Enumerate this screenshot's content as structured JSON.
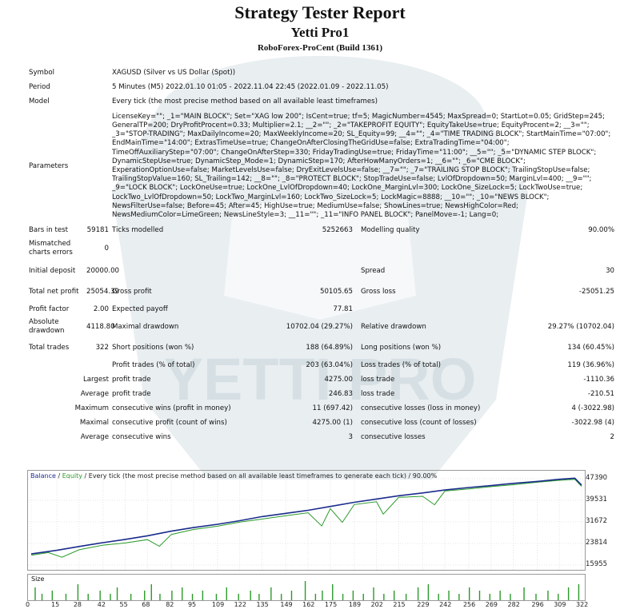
{
  "report": {
    "title": "Strategy Tester Report",
    "subtitle": "Yetti Pro1",
    "broker": "RoboForex-ProCent (Build 1361)"
  },
  "watermark": {
    "text": "YETTI PRO",
    "color": "#dfe6ea"
  },
  "rows": {
    "symbol_label": "Symbol",
    "symbol_value": "XAGUSD (Silver vs US Dollar (Spot))",
    "period_label": "Period",
    "period_value": "5 Minutes (M5) 2022.01.10 01:05 - 2022.11.04 22:45 (2022.01.09 - 2022.11.05)",
    "model_label": "Model",
    "model_value": "Every tick (the most precise method based on all available least timeframes)",
    "params_label": "Parameters",
    "params_value": "LicenseKey=\"\"; _1=\"MAIN BLOCK\"; Set=\"XAG low 200\"; IsCent=true; tf=5; MagicNumber=4545; MaxSpread=0; StartLot=0.05; GridStep=245; GeneralTP=200; DryProfitProcent=0.33; Multiplier=2.1; __2=\"\"; _2=\"TAKEPROFIT EQUITY\"; EquityTakeUse=true; EquityProcent=2; __3=\"\"; _3=\"STOP-TRADING\"; MaxDailyIncome=20; MaxWeeklyIncome=20; SL_Equity=99; __4=\"\"; _4=\"TIME TRADING BLOCK\"; StartMainTime=\"07:00\"; EndMainTime=\"14:00\"; ExtrasTimeUse=true; ChangeOnAfterClosingTheGridUse=false; ExtraTradingTime=\"04:00\"; TimeOffAuxiliaryStep=\"07:00\"; ChangeOnAfterStep=330; FridayTradingUse=true; FridayTime=\"11:00\"; __5=\"\"; _5=\"DYNAMIC STEP BLOCK\"; DynamicStepUse=true; DynamicStep_Mode=1; DynamicStep=170; AfterHowManyOrders=1; __6=\"\"; _6=\"CME BLOCK\"; ExperationOptionUse=false; MarketLevelsUse=false; DryExitLevelsUse=false; __7=\"\"; _7=\"TRAILING STOP BLOCK\"; TrailingStopUse=false; TrailingStopValue=160; SL_Trailing=142; __8=\"\"; _8=\"PROTECT BLOCK\"; StopTradeUse=false; LvlOfDropdown=50; MarginLvl=400; __9=\"\"; _9=\"LOCK BLOCK\"; LockOneUse=true; LockOne_LvlOfDropdown=40; LockOne_MarginLvl=300; LockOne_SizeLock=5; LockTwoUse=true; LockTwo_LvlOfDropdown=50; LockTwo_MarginLvl=160; LockTwo_SizeLock=5; LockMagic=8888; __10=\"\"; _10=\"NEWS BLOCK\"; NewsFilterUse=false; Before=45; After=45; HighUse=true; MediumUse=false; ShowLines=true; NewsHighColor=Red; NewsMediumColor=LimeGreen; NewsLineStyle=3; __11=\"\"; _11=\"INFO PANEL BLOCK\"; PanelMove=-1; Lang=0;",
    "bars_label": "Bars in test",
    "bars_value": "59181",
    "ticks_label": "Ticks modelled",
    "ticks_value": "5252663",
    "mq_label": "Modelling quality",
    "mq_value": "90.00%",
    "mce_label": "Mismatched charts errors",
    "mce_value": "0",
    "deposit_label": "Initial deposit",
    "deposit_value": "20000.00",
    "spread_label": "Spread",
    "spread_value": "30",
    "tnp_label": "Total net profit",
    "tnp_value": "25054.39",
    "gp_label": "Gross profit",
    "gp_value": "50105.65",
    "gl_label": "Gross loss",
    "gl_value": "-25051.25",
    "pf_label": "Profit factor",
    "pf_value": "2.00",
    "ep_label": "Expected payoff",
    "ep_value": "77.81",
    "add_label": "Absolute drawdown",
    "add_value": "4118.80",
    "mdd_label": "Maximal drawdown",
    "mdd_value": "10702.04 (29.27%)",
    "rdd_label": "Relative drawdown",
    "rdd_value": "29.27% (10702.04)",
    "tt_label": "Total trades",
    "tt_value": "322",
    "sp_label": "Short positions (won %)",
    "sp_value": "188 (64.89%)",
    "lp_label": "Long positions (won %)",
    "lp_value": "134 (60.45%)",
    "pt_label": "Profit trades (% of total)",
    "pt_value": "203 (63.04%)",
    "lt_label": "Loss trades (% of total)",
    "lt_value": "119 (36.96%)",
    "largest_label": "Largest",
    "lpt_label": "profit trade",
    "lpt_value": "4275.00",
    "llt_label": "loss trade",
    "llt_value": "-1110.36",
    "average_label": "Average",
    "apt_label": "profit trade",
    "apt_value": "246.83",
    "alt_label": "loss trade",
    "alt_value": "-210.51",
    "maximum_label": "Maximum",
    "mcw_label": "consecutive wins (profit in money)",
    "mcw_value": "11 (697.42)",
    "mcl_label": "consecutive losses (loss in money)",
    "mcl_value": "4 (-3022.98)",
    "maximal_label": "Maximal",
    "mcp_label": "consecutive profit (count of wins)",
    "mcp_value": "4275.00 (1)",
    "mclc_label": "consecutive loss (count of losses)",
    "mclc_value": "-3022.98 (4)",
    "average2_label": "Average",
    "acw_label": "consecutive wins",
    "acw_value": "3",
    "acl_label": "consecutive losses",
    "acl_value": "2"
  },
  "chart": {
    "header_balance": "Balance",
    "header_sep": " / ",
    "header_equity": "Equity",
    "header_rest": " / Every tick (the most precise method based on all available least timeframes to generate each tick) / 90.00%",
    "y_ticks": [
      "47390",
      "39531",
      "31672",
      "23814",
      "15955"
    ],
    "x_ticks": [
      "0",
      "15",
      "28",
      "42",
      "55",
      "68",
      "82",
      "95",
      "109",
      "122",
      "135",
      "149",
      "162",
      "175",
      "189",
      "202",
      "215",
      "229",
      "242",
      "256",
      "269",
      "282",
      "296",
      "309",
      "322"
    ],
    "size_label": "Size",
    "balance_color": "#1a2c8c",
    "equity_color": "#2a9a2a"
  },
  "chart_data": {
    "type": "line",
    "title": "Balance / Equity / Every tick (the most precise method based on all available least timeframes to generate each tick) / 90.00%",
    "xlim": [
      0,
      322
    ],
    "ylim": [
      15955,
      47390
    ],
    "series": [
      {
        "name": "Balance",
        "x": [
          0,
          15,
          28,
          42,
          55,
          68,
          82,
          95,
          109,
          122,
          135,
          149,
          162,
          175,
          189,
          202,
          215,
          229,
          242,
          256,
          269,
          282,
          296,
          309,
          318,
          322
        ],
        "y": [
          20000,
          21300,
          22700,
          24100,
          25300,
          26600,
          28300,
          29600,
          30800,
          32100,
          33600,
          34800,
          35900,
          37300,
          38800,
          40000,
          41200,
          42200,
          43300,
          44200,
          44900,
          45700,
          46400,
          47200,
          47600,
          45050
        ]
      },
      {
        "name": "Equity",
        "x": [
          0,
          10,
          18,
          28,
          42,
          55,
          68,
          75,
          82,
          95,
          109,
          122,
          135,
          149,
          162,
          170,
          175,
          182,
          189,
          202,
          206,
          215,
          229,
          236,
          242,
          256,
          269,
          282,
          296,
          309,
          318,
          322
        ],
        "y": [
          19500,
          20500,
          18800,
          21500,
          23200,
          24000,
          25200,
          22800,
          27100,
          28900,
          30100,
          31600,
          32700,
          33900,
          35000,
          30200,
          36500,
          31500,
          38000,
          39000,
          34500,
          40600,
          41000,
          37900,
          42900,
          43700,
          44500,
          45200,
          46100,
          46800,
          47200,
          44600
        ]
      }
    ],
    "size_bars": {
      "x": [
        2,
        6,
        12,
        20,
        27,
        33,
        40,
        46,
        50,
        58,
        66,
        70,
        75,
        82,
        88,
        94,
        100,
        108,
        114,
        121,
        128,
        133,
        140,
        146,
        152,
        160,
        166,
        170,
        176,
        182,
        188,
        194,
        200,
        206,
        212,
        219,
        226,
        232,
        238,
        244,
        250,
        256,
        262,
        268,
        274,
        280,
        288,
        295,
        302,
        308,
        314,
        320
      ],
      "y": [
        3,
        1,
        2,
        1,
        4,
        1,
        2,
        1,
        3,
        1,
        2,
        4,
        1,
        2,
        3,
        1,
        2,
        1,
        3,
        1,
        2,
        1,
        3,
        1,
        2,
        5,
        1,
        2,
        4,
        1,
        2,
        1,
        3,
        1,
        2,
        1,
        3,
        4,
        1,
        2,
        1,
        3,
        2,
        1,
        2,
        1,
        3,
        1,
        2,
        1,
        3,
        4
      ]
    }
  }
}
